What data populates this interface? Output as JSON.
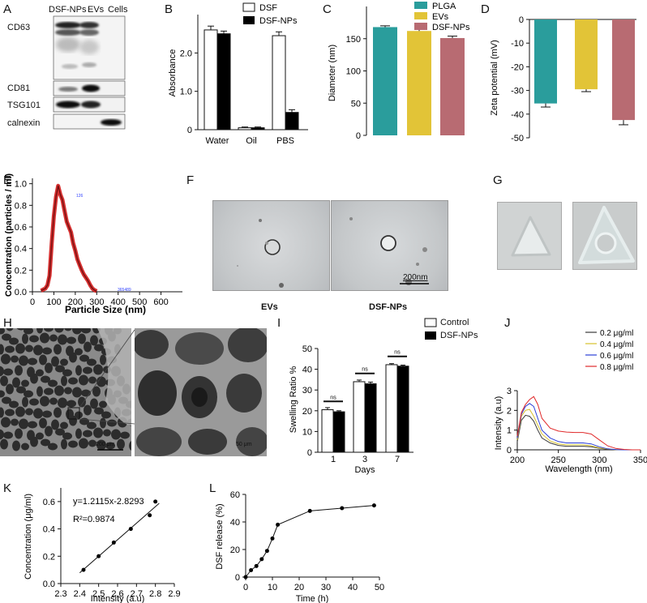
{
  "panel_letters": [
    "A",
    "B",
    "C",
    "D",
    "E",
    "F",
    "G",
    "H",
    "I",
    "J",
    "K",
    "L"
  ],
  "panel_a": {
    "columns": [
      "DSF-NPs",
      "EVs",
      "Cells"
    ],
    "markers": [
      "CD63",
      "CD81",
      "TSG101",
      "calnexin"
    ]
  },
  "panel_f": {
    "labels": [
      "EVs",
      "DSF-NPs"
    ],
    "scale_bar": "200nm"
  },
  "panel_h": {
    "scale_left": "200 μm",
    "scale_right": "50 μm"
  },
  "colors": {
    "plga": "#2a9d9c",
    "evs": "#e2c437",
    "dsfnps": "#b86b72",
    "red_curve": "#c0181a"
  },
  "chart_data": [
    {
      "panel": "B",
      "type": "bar",
      "categories": [
        "Water",
        "Oil",
        "PBS"
      ],
      "series": [
        {
          "name": "DSF",
          "values": [
            2.6,
            0.05,
            2.45
          ],
          "errors": [
            0.1,
            0.02,
            0.1
          ]
        },
        {
          "name": "DSF-NPs",
          "values": [
            2.5,
            0.05,
            0.45
          ],
          "errors": [
            0.07,
            0.02,
            0.07
          ]
        }
      ],
      "xlabel": "",
      "ylabel": "Absorbance",
      "ylim": [
        0,
        3
      ],
      "yticks": [
        "0",
        "1.0",
        "2.0"
      ]
    },
    {
      "panel": "C",
      "type": "bar",
      "categories": [
        "PLGA",
        "EVs",
        "DSF-NPs"
      ],
      "values": [
        168,
        162,
        151
      ],
      "errors": [
        2,
        3,
        3
      ],
      "legend": [
        "PLGA",
        "EVs",
        "DSF-NPs"
      ],
      "xlabel": "",
      "ylabel": "Diameter (nm)",
      "ylim": [
        0,
        200
      ],
      "yticks": [
        "0",
        "50",
        "100",
        "150"
      ]
    },
    {
      "panel": "D",
      "type": "bar",
      "categories": [
        "PLGA",
        "EVs",
        "DSF-NPs"
      ],
      "values": [
        -35.5,
        -29.5,
        -42.5
      ],
      "errors": [
        1.5,
        1,
        2
      ],
      "xlabel": "",
      "ylabel": "Zeta potential (mV)",
      "ylim": [
        -50,
        0
      ],
      "yticks": [
        "0",
        "-10",
        "-20",
        "-30",
        "-40",
        "-50"
      ]
    },
    {
      "panel": "E",
      "type": "line",
      "xlabel": "Particle Size (nm)",
      "ylabel": "Concentration (particles / ml)",
      "xlim": [
        0,
        700
      ],
      "ylim": [
        0,
        1.05
      ],
      "xticks": [
        "0",
        "100",
        "200",
        "300",
        "400",
        "500",
        "600"
      ],
      "yticks": [
        "0.0",
        "0.2",
        "0.4",
        "0.6",
        "0.8",
        "1.0"
      ],
      "annotations": [
        "126",
        "365489"
      ],
      "x": [
        40,
        50,
        60,
        70,
        80,
        90,
        100,
        110,
        120,
        130,
        140,
        150,
        160,
        170,
        180,
        190,
        200,
        210,
        220,
        230,
        240,
        250,
        260,
        270,
        280,
        290,
        300
      ],
      "y": [
        0.01,
        0.02,
        0.03,
        0.06,
        0.15,
        0.45,
        0.7,
        0.88,
        0.98,
        0.9,
        0.85,
        0.75,
        0.65,
        0.6,
        0.55,
        0.45,
        0.38,
        0.3,
        0.25,
        0.2,
        0.16,
        0.13,
        0.1,
        0.06,
        0.03,
        0.015,
        0.005
      ]
    },
    {
      "panel": "I",
      "type": "bar",
      "categories": [
        "1",
        "3",
        "7"
      ],
      "series": [
        {
          "name": "Control",
          "values": [
            20.5,
            34,
            42.2
          ],
          "errors": [
            1,
            0.8,
            0.5
          ]
        },
        {
          "name": "DSF-NPs",
          "values": [
            19.5,
            33,
            41.5
          ],
          "errors": [
            0.5,
            0.8,
            0.5
          ]
        }
      ],
      "annotations": [
        "ns",
        "ns",
        "ns"
      ],
      "xlabel": "Days",
      "ylabel": "Swelling Ratio %",
      "ylim": [
        0,
        50
      ],
      "yticks": [
        "0",
        "10",
        "20",
        "30",
        "40",
        "50"
      ]
    },
    {
      "panel": "J",
      "type": "line",
      "xlabel": "Wavelength (nm)",
      "ylabel": "Intensity (a.u)",
      "xlim": [
        200,
        350
      ],
      "ylim": [
        0,
        3
      ],
      "xticks": [
        "200",
        "250",
        "300",
        "350"
      ],
      "yticks": [
        "0",
        "1",
        "2",
        "3"
      ],
      "x": [
        200,
        205,
        210,
        215,
        220,
        225,
        230,
        240,
        250,
        260,
        270,
        280,
        290,
        300,
        310,
        320,
        330,
        340,
        350
      ],
      "series": [
        {
          "name": "0.2 μg/ml",
          "color": "#3a3a3a",
          "y": [
            0.4,
            1.5,
            1.75,
            1.7,
            1.45,
            1.0,
            0.6,
            0.35,
            0.22,
            0.18,
            0.18,
            0.18,
            0.15,
            0.08,
            0.03,
            0.01,
            0,
            0,
            0
          ]
        },
        {
          "name": "0.4 μg/ml",
          "color": "#d7c02c",
          "y": [
            0.5,
            1.7,
            2.0,
            2.05,
            1.7,
            1.25,
            0.8,
            0.45,
            0.3,
            0.25,
            0.25,
            0.25,
            0.2,
            0.1,
            0.04,
            0.01,
            0,
            0,
            0
          ]
        },
        {
          "name": "0.6 μg/ml",
          "color": "#2c3fd7",
          "y": [
            0.6,
            1.8,
            2.2,
            2.35,
            2.2,
            1.6,
            1.0,
            0.6,
            0.42,
            0.35,
            0.35,
            0.35,
            0.3,
            0.15,
            0.05,
            0.01,
            0,
            0,
            0
          ]
        },
        {
          "name": "0.8 μg/ml",
          "color": "#e0292a",
          "y": [
            0.7,
            1.9,
            2.3,
            2.55,
            2.7,
            2.3,
            1.6,
            1.1,
            0.95,
            0.9,
            0.88,
            0.88,
            0.8,
            0.5,
            0.2,
            0.07,
            0.02,
            0,
            0
          ]
        }
      ]
    },
    {
      "panel": "K",
      "type": "scatter",
      "xlabel": "Intensity (a.u)",
      "ylabel": "Concentration (μg/ml)",
      "xlim": [
        2.3,
        2.9
      ],
      "ylim": [
        0,
        0.7
      ],
      "xticks": [
        "2.3",
        "2.4",
        "2.5",
        "2.6",
        "2.7",
        "2.8",
        "2.9"
      ],
      "yticks": [
        "0.0",
        "0.2",
        "0.4",
        "0.6"
      ],
      "x": [
        2.42,
        2.5,
        2.58,
        2.67,
        2.77,
        2.8
      ],
      "y": [
        0.1,
        0.2,
        0.3,
        0.4,
        0.5,
        0.6
      ],
      "fit": {
        "slope": 1.2115,
        "intercept": -2.8293
      },
      "annotations": [
        "y=1.2115x-2.8293",
        "R²=0.9874"
      ]
    },
    {
      "panel": "L",
      "type": "line",
      "xlabel": "Time (h)",
      "ylabel": "DSF release (%)",
      "xlim": [
        0,
        50
      ],
      "ylim": [
        0,
        60
      ],
      "xticks": [
        "0",
        "10",
        "20",
        "30",
        "40",
        "50"
      ],
      "yticks": [
        "0",
        "20",
        "40",
        "60"
      ],
      "x": [
        0,
        2,
        4,
        6,
        8,
        10,
        12,
        24,
        36,
        48
      ],
      "y": [
        0,
        5,
        8,
        13,
        19,
        28,
        38,
        48,
        50,
        52
      ]
    }
  ]
}
